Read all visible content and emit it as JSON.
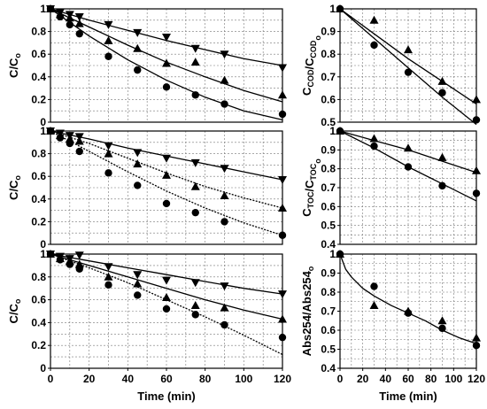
{
  "chart_data": [
    {
      "id": "p1",
      "type": "scatter",
      "xlabel": "",
      "xlim": [
        0,
        120
      ],
      "xticks": [
        0,
        20,
        40,
        60,
        80,
        100,
        120
      ],
      "show_xticks": false,
      "ylabel": {
        "main": "C/C",
        "sub": "o",
        "after": ""
      },
      "ylim": [
        0,
        1
      ],
      "yticks": [
        0,
        0.2,
        0.4,
        0.6,
        0.8,
        1
      ],
      "ytick_labels": [
        "0",
        "0.2",
        "0.4",
        "0.6",
        "0.8",
        "1"
      ],
      "grid": true,
      "series": [
        {
          "marker": "triangle-down",
          "line": "solid",
          "x": [
            0,
            5,
            10,
            15,
            30,
            45,
            60,
            75,
            90,
            120
          ],
          "y": [
            1,
            0.97,
            0.95,
            0.93,
            0.86,
            0.79,
            0.75,
            0.65,
            0.6,
            0.48
          ],
          "fit": [
            [
              0,
              1
            ],
            [
              20,
              0.9
            ],
            [
              40,
              0.81
            ],
            [
              60,
              0.72
            ],
            [
              80,
              0.64
            ],
            [
              100,
              0.56
            ],
            [
              120,
              0.5
            ]
          ]
        },
        {
          "marker": "triangle-up",
          "line": "solid",
          "x": [
            0,
            5,
            10,
            15,
            30,
            45,
            60,
            75,
            90,
            120
          ],
          "y": [
            1,
            0.95,
            0.92,
            0.87,
            0.72,
            0.65,
            0.52,
            0.53,
            0.37,
            0.24
          ],
          "fit": [
            [
              0,
              1
            ],
            [
              20,
              0.84
            ],
            [
              40,
              0.68
            ],
            [
              60,
              0.53
            ],
            [
              80,
              0.4
            ],
            [
              100,
              0.28
            ],
            [
              120,
              0.18
            ]
          ]
        },
        {
          "marker": "circle",
          "line": "solid",
          "x": [
            0,
            5,
            10,
            15,
            30,
            45,
            60,
            75,
            90,
            120
          ],
          "y": [
            1,
            0.93,
            0.86,
            0.78,
            0.58,
            0.46,
            0.31,
            0.24,
            0.16,
            0.07
          ],
          "fit": [
            [
              0,
              1
            ],
            [
              20,
              0.76
            ],
            [
              40,
              0.55
            ],
            [
              60,
              0.37
            ],
            [
              80,
              0.22
            ],
            [
              100,
              0.1
            ],
            [
              120,
              0.02
            ]
          ]
        }
      ]
    },
    {
      "id": "p2",
      "type": "scatter",
      "xlabel": "",
      "xlim": [
        0,
        120
      ],
      "xticks": [
        0,
        20,
        40,
        60,
        80,
        100,
        120
      ],
      "show_xticks": false,
      "ylabel": {
        "main": "C",
        "sub": "COD",
        "after": "/C",
        "sub2": "COD",
        "sub3": "o"
      },
      "ylim": [
        0.5,
        1
      ],
      "yticks": [
        0.5,
        0.6,
        0.7,
        0.8,
        0.9,
        1
      ],
      "ytick_labels": [
        "0.5",
        "0.6",
        "0.7",
        "0.8",
        "0.9",
        "1"
      ],
      "grid": true,
      "series": [
        {
          "marker": "triangle-up",
          "line": "solid",
          "x": [
            0,
            30,
            60,
            90,
            120
          ],
          "y": [
            1,
            0.95,
            0.82,
            0.68,
            0.6
          ],
          "fit": [
            [
              0,
              1
            ],
            [
              30,
              0.89
            ],
            [
              60,
              0.78
            ],
            [
              90,
              0.68
            ],
            [
              120,
              0.58
            ]
          ]
        },
        {
          "marker": "circle",
          "line": "solid",
          "x": [
            0,
            30,
            60,
            90,
            120
          ],
          "y": [
            1,
            0.84,
            0.72,
            0.63,
            0.51
          ],
          "fit": [
            [
              0,
              1
            ],
            [
              30,
              0.87
            ],
            [
              60,
              0.74
            ],
            [
              90,
              0.61
            ],
            [
              120,
              0.49
            ]
          ]
        }
      ]
    },
    {
      "id": "p3",
      "type": "scatter",
      "xlabel": "",
      "xlim": [
        0,
        120
      ],
      "xticks": [
        0,
        20,
        40,
        60,
        80,
        100,
        120
      ],
      "show_xticks": false,
      "ylabel": {
        "main": "C/C",
        "sub": "o",
        "after": ""
      },
      "ylim": [
        0,
        1
      ],
      "yticks": [
        0,
        0.2,
        0.4,
        0.6,
        0.8,
        1
      ],
      "ytick_labels": [
        "0",
        "0.2",
        "0.4",
        "0.6",
        "0.8",
        "1"
      ],
      "grid": true,
      "series": [
        {
          "marker": "triangle-down",
          "line": "solid",
          "x": [
            0,
            5,
            10,
            15,
            30,
            45,
            60,
            75,
            90,
            120
          ],
          "y": [
            1,
            0.98,
            0.96,
            0.95,
            0.87,
            0.81,
            0.76,
            0.72,
            0.67,
            0.57
          ],
          "fit": [
            [
              0,
              1
            ],
            [
              20,
              0.93
            ],
            [
              40,
              0.85
            ],
            [
              60,
              0.78
            ],
            [
              80,
              0.71
            ],
            [
              100,
              0.64
            ],
            [
              120,
              0.57
            ]
          ]
        },
        {
          "marker": "triangle-up",
          "line": "dotted",
          "x": [
            0,
            5,
            10,
            15,
            30,
            45,
            60,
            75,
            90,
            120
          ],
          "y": [
            1,
            0.96,
            0.93,
            0.91,
            0.8,
            0.71,
            0.61,
            0.51,
            0.43,
            0.32
          ],
          "fit": [
            [
              0,
              1
            ],
            [
              20,
              0.89
            ],
            [
              40,
              0.76
            ],
            [
              60,
              0.63
            ],
            [
              80,
              0.51
            ],
            [
              100,
              0.41
            ],
            [
              120,
              0.32
            ]
          ]
        },
        {
          "marker": "circle",
          "line": "dotted",
          "x": [
            0,
            5,
            10,
            15,
            30,
            45,
            60,
            75,
            90,
            120
          ],
          "y": [
            1,
            0.94,
            0.89,
            0.82,
            0.63,
            0.52,
            0.36,
            0.28,
            0.2,
            0.08
          ],
          "fit": [
            [
              0,
              1
            ],
            [
              20,
              0.82
            ],
            [
              40,
              0.64
            ],
            [
              60,
              0.47
            ],
            [
              80,
              0.32
            ],
            [
              100,
              0.19
            ],
            [
              120,
              0.08
            ]
          ]
        }
      ]
    },
    {
      "id": "p4",
      "type": "scatter",
      "xlabel": "",
      "xlim": [
        0,
        120
      ],
      "xticks": [
        0,
        20,
        40,
        60,
        80,
        100,
        120
      ],
      "show_xticks": false,
      "ylabel": {
        "main": "C",
        "sub": "TOC",
        "after": "/C",
        "sub2": "TOC",
        "sub3": "o"
      },
      "ylim": [
        0.4,
        1
      ],
      "yticks": [
        0.4,
        0.5,
        0.6,
        0.7,
        0.8,
        0.9,
        1
      ],
      "ytick_labels": [
        "0.4",
        "0.5",
        "0.6",
        "0.7",
        "0.8",
        "0.9",
        "1"
      ],
      "grid": true,
      "series": [
        {
          "marker": "triangle-up",
          "line": "solid",
          "x": [
            0,
            30,
            60,
            90,
            120
          ],
          "y": [
            1,
            0.96,
            0.91,
            0.86,
            0.79
          ],
          "fit": [
            [
              0,
              1
            ],
            [
              30,
              0.95
            ],
            [
              60,
              0.9
            ],
            [
              90,
              0.84
            ],
            [
              120,
              0.78
            ]
          ]
        },
        {
          "marker": "circle",
          "line": "solid",
          "x": [
            0,
            30,
            60,
            90,
            120
          ],
          "y": [
            1,
            0.92,
            0.81,
            0.71,
            0.67
          ],
          "fit": [
            [
              0,
              1
            ],
            [
              30,
              0.91
            ],
            [
              60,
              0.81
            ],
            [
              90,
              0.72
            ],
            [
              120,
              0.63
            ]
          ]
        }
      ]
    },
    {
      "id": "p5",
      "type": "scatter",
      "xlabel": "Time (min)",
      "xlim": [
        0,
        120
      ],
      "xticks": [
        0,
        20,
        40,
        60,
        80,
        100,
        120
      ],
      "show_xticks": true,
      "ylabel": {
        "main": "C/C",
        "sub": "o",
        "after": ""
      },
      "ylim": [
        0,
        1
      ],
      "yticks": [
        0,
        0.2,
        0.4,
        0.6,
        0.8,
        1
      ],
      "ytick_labels": [
        "0",
        "0.2",
        "0.4",
        "0.6",
        "0.8",
        "1"
      ],
      "grid": true,
      "series": [
        {
          "marker": "triangle-down",
          "line": "solid",
          "x": [
            0,
            5,
            10,
            15,
            30,
            45,
            60,
            75,
            90,
            120
          ],
          "y": [
            1,
            0.98,
            0.96,
            0.99,
            0.89,
            0.82,
            0.77,
            0.75,
            0.72,
            0.65
          ],
          "fit": [
            [
              0,
              1
            ],
            [
              20,
              0.94
            ],
            [
              40,
              0.88
            ],
            [
              60,
              0.82
            ],
            [
              80,
              0.76
            ],
            [
              100,
              0.7
            ],
            [
              120,
              0.65
            ]
          ]
        },
        {
          "marker": "triangle-up",
          "line": "solid",
          "x": [
            0,
            5,
            10,
            15,
            30,
            45,
            60,
            75,
            90,
            120
          ],
          "y": [
            1,
            0.96,
            0.94,
            0.91,
            0.8,
            0.74,
            0.62,
            0.55,
            0.53,
            0.43
          ],
          "fit": [
            [
              0,
              1
            ],
            [
              20,
              0.9
            ],
            [
              40,
              0.8
            ],
            [
              60,
              0.7
            ],
            [
              80,
              0.6
            ],
            [
              100,
              0.51
            ],
            [
              120,
              0.43
            ]
          ]
        },
        {
          "marker": "circle",
          "line": "dotted",
          "x": [
            0,
            5,
            10,
            15,
            30,
            45,
            60,
            75,
            90,
            120
          ],
          "y": [
            1,
            0.95,
            0.91,
            0.87,
            0.73,
            0.64,
            0.52,
            0.47,
            0.38,
            0.27
          ],
          "fit": [
            [
              0,
              1
            ],
            [
              20,
              0.88
            ],
            [
              40,
              0.75
            ],
            [
              60,
              0.6
            ],
            [
              80,
              0.45
            ],
            [
              100,
              0.29
            ],
            [
              120,
              0.12
            ]
          ]
        }
      ]
    },
    {
      "id": "p6",
      "type": "scatter",
      "xlabel": "Time (min)",
      "xlim": [
        0,
        120
      ],
      "xticks": [
        0,
        20,
        40,
        60,
        80,
        100,
        120
      ],
      "show_xticks": true,
      "ylabel": {
        "main": "Abs254/Abs254",
        "sub": "o",
        "after": ""
      },
      "ylim": [
        0.4,
        1
      ],
      "yticks": [
        0.4,
        0.5,
        0.6,
        0.7,
        0.8,
        0.9,
        1
      ],
      "ytick_labels": [
        "0.4",
        "0.5",
        "0.6",
        "0.7",
        "0.8",
        "0.9",
        "1"
      ],
      "grid": true,
      "series": [
        {
          "marker": "triangle-up",
          "line": "solid",
          "x": [
            0,
            30,
            60,
            90,
            120
          ],
          "y": [
            1,
            0.73,
            0.7,
            0.65,
            0.56
          ],
          "fit": []
        },
        {
          "marker": "circle",
          "line": "solid",
          "x": [
            0,
            30,
            60,
            90,
            120
          ],
          "y": [
            1,
            0.83,
            0.69,
            0.61,
            0.52
          ],
          "fit": [
            [
              0,
              1
            ],
            [
              5,
              0.92
            ],
            [
              10,
              0.88
            ],
            [
              20,
              0.82
            ],
            [
              30,
              0.78
            ],
            [
              45,
              0.73
            ],
            [
              60,
              0.69
            ],
            [
              75,
              0.65
            ],
            [
              90,
              0.6
            ],
            [
              105,
              0.56
            ],
            [
              120,
              0.53
            ]
          ]
        }
      ]
    }
  ]
}
